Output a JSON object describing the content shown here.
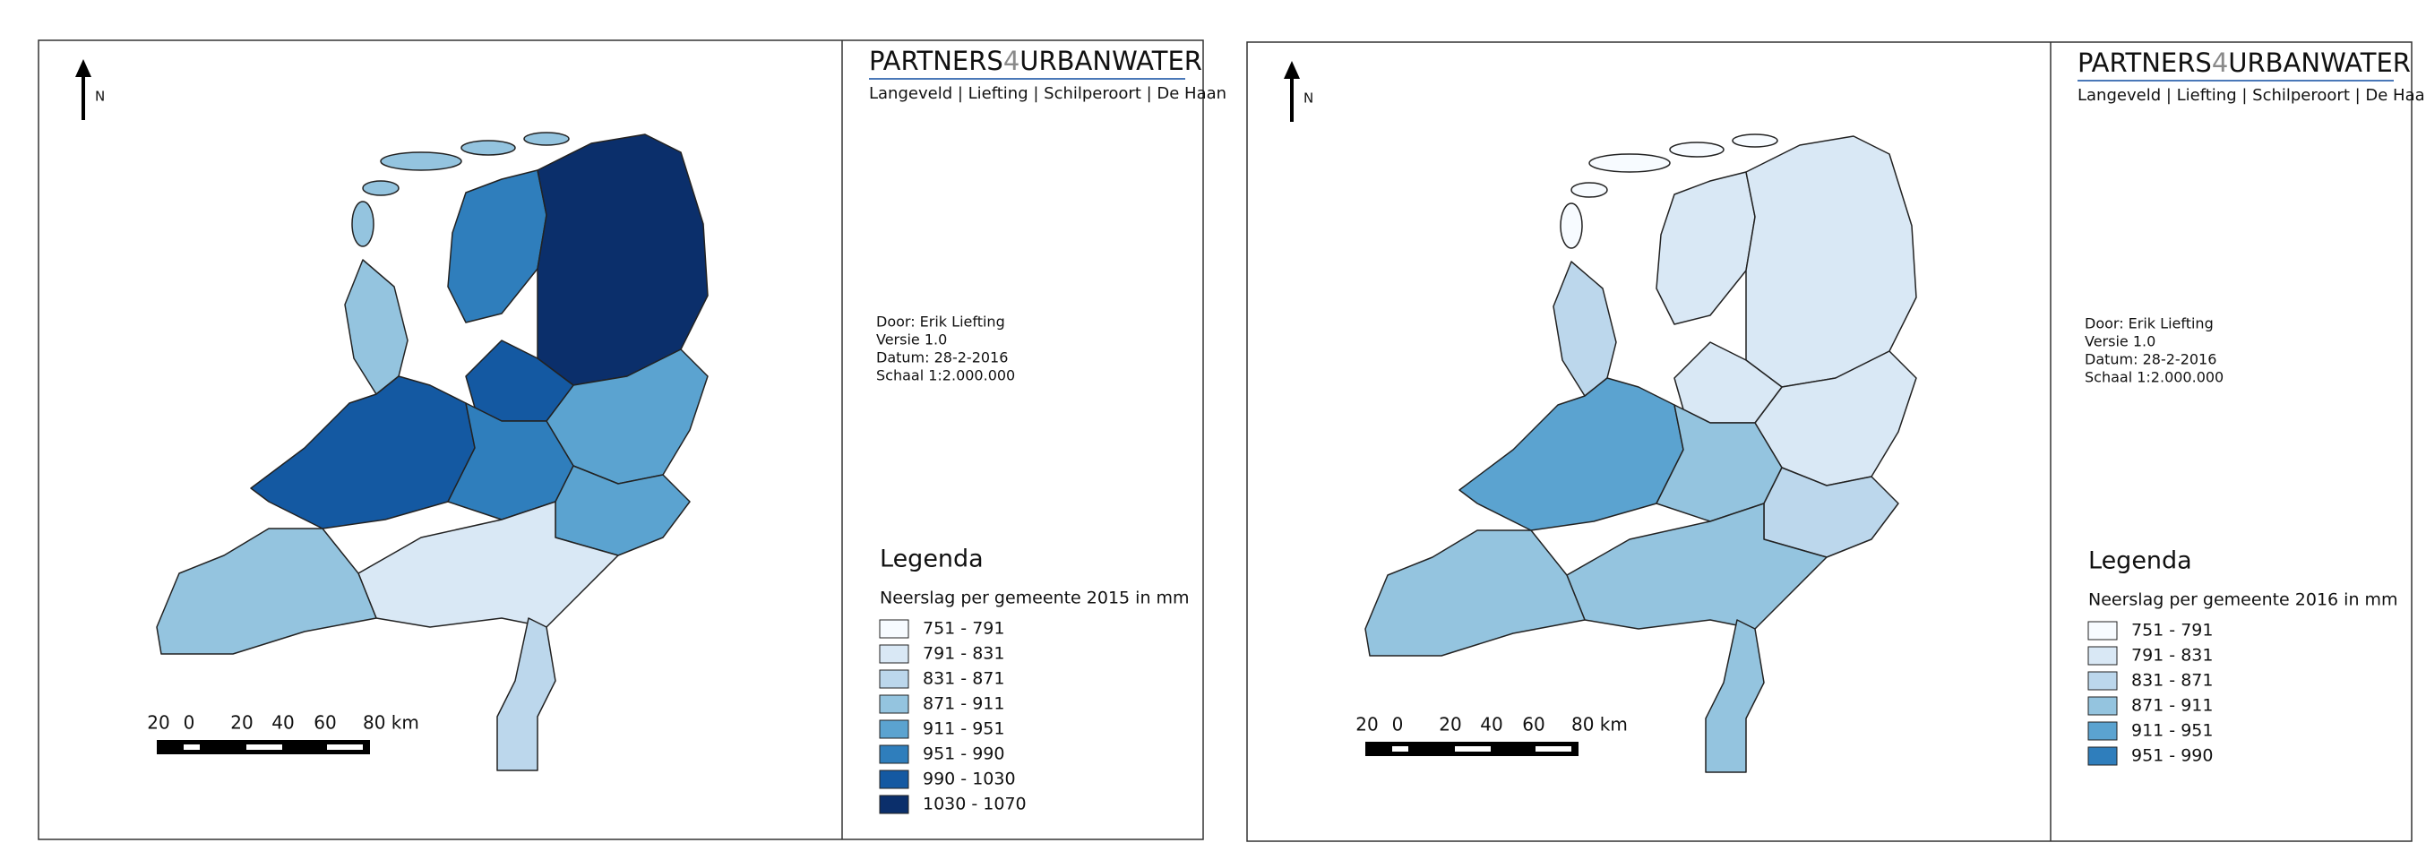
{
  "panels": [
    {
      "north": "N",
      "logo": {
        "parts": [
          "PARTNERS",
          "4",
          "URBANWATER"
        ],
        "subtitle": "Langeveld | Liefting | Schilperoort | De Haan"
      },
      "info": [
        "Door: Erik Liefting",
        "Versie 1.0",
        "Datum: 28-2-2016",
        "Schaal 1:2.000.000"
      ],
      "scale_labels": [
        "20",
        "0",
        "20",
        "40",
        "60",
        "80 km"
      ],
      "legend": {
        "title": "Legenda",
        "subtitle": "Neerslag per gemeente 2015 in mm",
        "items": [
          {
            "label": "751 - 791",
            "color": "#f7fbff"
          },
          {
            "label": "791 - 831",
            "color": "#d9e8f5"
          },
          {
            "label": "831 - 871",
            "color": "#bcd7ec"
          },
          {
            "label": "871 - 911",
            "color": "#94c4df"
          },
          {
            "label": "911 - 951",
            "color": "#5ba3d0"
          },
          {
            "label": "951 - 990",
            "color": "#2f7ebc"
          },
          {
            "label": "990 - 1030",
            "color": "#1459a2"
          },
          {
            "label": "1030 - 1070",
            "color": "#0b2f6b"
          }
        ]
      }
    },
    {
      "north": "N",
      "logo": {
        "parts": [
          "PARTNERS",
          "4",
          "URBANWATER"
        ],
        "subtitle": "Langeveld | Liefting | Schilperoort | De Haan"
      },
      "info": [
        "Door: Erik Liefting",
        "Versie 1.0",
        "Datum: 28-2-2016",
        "Schaal 1:2.000.000"
      ],
      "scale_labels": [
        "20",
        "0",
        "20",
        "40",
        "60",
        "80 km"
      ],
      "legend": {
        "title": "Legenda",
        "subtitle": "Neerslag per gemeente 2016 in mm",
        "items": [
          {
            "label": "751 - 791",
            "color": "#f7fbff"
          },
          {
            "label": "791 - 831",
            "color": "#d9e8f5"
          },
          {
            "label": "831 - 871",
            "color": "#bcd7ec"
          },
          {
            "label": "871 - 911",
            "color": "#94c4df"
          },
          {
            "label": "911 - 951",
            "color": "#5ba3d0"
          },
          {
            "label": "951 - 990",
            "color": "#2f7ebc"
          }
        ]
      }
    }
  ]
}
